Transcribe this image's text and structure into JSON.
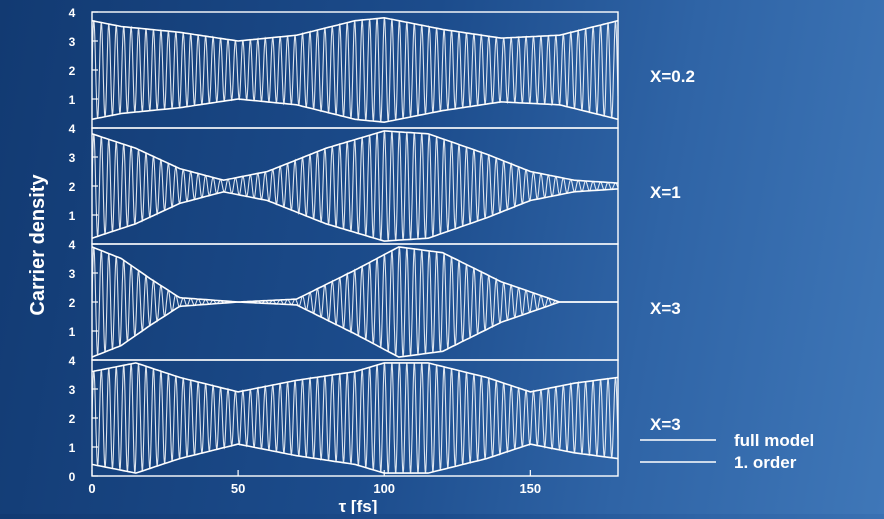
{
  "colors": {
    "foreground": "#ffffff",
    "background": "#1c4c8c"
  },
  "chart_data": {
    "type": "line",
    "xlabel": "τ [fs]",
    "ylabel": "Carrier density",
    "xlim": [
      0,
      180
    ],
    "ylim": [
      0,
      4
    ],
    "x_ticks": [
      "0",
      "50",
      "100",
      "150"
    ],
    "y_ticks": [
      "0",
      "1",
      "2",
      "3",
      "4"
    ],
    "grid": false,
    "legend_placement": "bottom-right",
    "legend": [
      "full model",
      "1. order"
    ],
    "panels": [
      {
        "label": "X=0.2",
        "center": 2,
        "envelope_t": [
          0,
          10,
          30,
          50,
          70,
          90,
          100,
          120,
          140,
          160,
          180
        ],
        "envelope_amp": [
          1.7,
          1.5,
          1.3,
          1.0,
          1.2,
          1.7,
          1.8,
          1.4,
          1.1,
          1.2,
          1.7
        ]
      },
      {
        "label": "X=1",
        "center": 2,
        "envelope_t": [
          0,
          15,
          30,
          45,
          60,
          80,
          100,
          115,
          135,
          150,
          165,
          180
        ],
        "envelope_amp": [
          1.8,
          1.3,
          0.6,
          0.2,
          0.5,
          1.3,
          1.9,
          1.8,
          1.1,
          0.5,
          0.2,
          0.1
        ]
      },
      {
        "label": "X=3",
        "center": 2,
        "envelope_t": [
          0,
          10,
          20,
          30,
          50,
          70,
          90,
          105,
          120,
          140,
          160,
          180
        ],
        "envelope_amp": [
          1.9,
          1.5,
          0.8,
          0.15,
          0.0,
          0.1,
          1.1,
          1.9,
          1.7,
          0.7,
          0.0,
          0.0
        ]
      },
      {
        "label": "X=3",
        "center": 2,
        "envelope_t": [
          0,
          15,
          30,
          50,
          70,
          90,
          100,
          115,
          135,
          150,
          165,
          180
        ],
        "envelope_amp": [
          1.6,
          1.9,
          1.4,
          0.9,
          1.3,
          1.6,
          1.9,
          1.9,
          1.4,
          0.9,
          1.2,
          1.4
        ]
      }
    ]
  }
}
